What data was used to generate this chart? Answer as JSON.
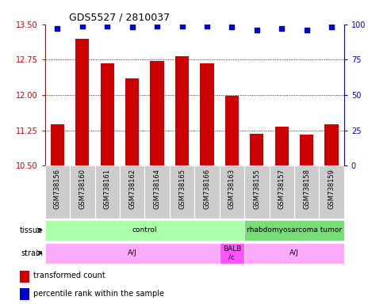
{
  "title": "GDS5527 / 2810037",
  "samples": [
    "GSM738156",
    "GSM738160",
    "GSM738161",
    "GSM738162",
    "GSM738164",
    "GSM738165",
    "GSM738166",
    "GSM738163",
    "GSM738155",
    "GSM738157",
    "GSM738158",
    "GSM738159"
  ],
  "bar_values": [
    11.37,
    13.2,
    12.67,
    12.35,
    12.72,
    12.82,
    12.67,
    11.98,
    11.18,
    11.32,
    11.16,
    11.38
  ],
  "blue_values": [
    97,
    99,
    99,
    98,
    99,
    99,
    99,
    98,
    96,
    97,
    96,
    98
  ],
  "ylim_left": [
    10.5,
    13.5
  ],
  "ylim_right": [
    0,
    100
  ],
  "yticks_left": [
    10.5,
    11.25,
    12.0,
    12.75,
    13.5
  ],
  "yticks_right": [
    0,
    25,
    50,
    75,
    100
  ],
  "bar_color": "#cc0000",
  "blue_color": "#0000cc",
  "tissue_data": [
    {
      "label": "control",
      "start": 0,
      "end": 8,
      "color": "#aaffaa"
    },
    {
      "label": "rhabdomyosarcoma tumor",
      "start": 8,
      "end": 12,
      "color": "#77dd77"
    }
  ],
  "strain_data": [
    {
      "label": "A/J",
      "start": 0,
      "end": 7,
      "color": "#ffaaff"
    },
    {
      "label": "BALB\n/c",
      "start": 7,
      "end": 8,
      "color": "#ff55ff"
    },
    {
      "label": "A/J",
      "start": 8,
      "end": 12,
      "color": "#ffaaff"
    }
  ],
  "legend_items": [
    {
      "label": "transformed count",
      "color": "#cc0000"
    },
    {
      "label": "percentile rank within the sample",
      "color": "#0000cc"
    }
  ],
  "xlabel_bg_color": "#cccccc",
  "xlabel_edge_color": "#ffffff",
  "fig_bg_color": "#ffffff"
}
